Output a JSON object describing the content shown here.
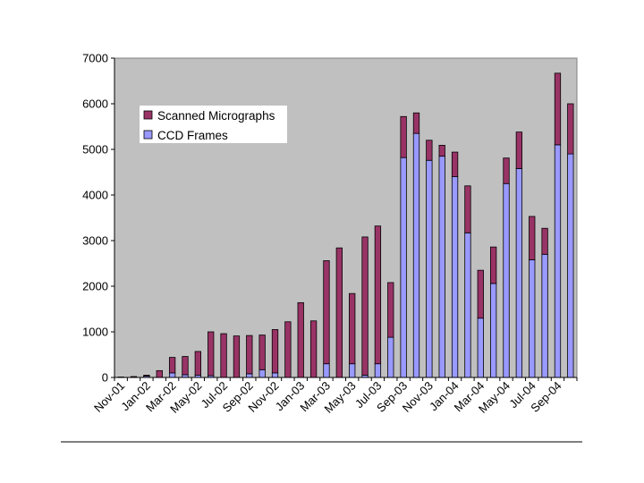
{
  "chart_data": {
    "type": "bar",
    "stacked": true,
    "title": "",
    "xlabel": "",
    "ylabel": "",
    "ylim": [
      0,
      7000
    ],
    "yticks": [
      0,
      1000,
      2000,
      3000,
      4000,
      5000,
      6000,
      7000
    ],
    "grid": false,
    "legend_position": "top-left",
    "colors": {
      "plot_background": "#c0c0c0",
      "ccd": "#9999ff",
      "scanned": "#993366",
      "outline": "#000000"
    },
    "categories": [
      "Nov-01",
      "Dec-01",
      "Jan-02",
      "Feb-02",
      "Mar-02",
      "Apr-02",
      "May-02",
      "Jun-02",
      "Jul-02",
      "Aug-02",
      "Sep-02",
      "Oct-02",
      "Nov-02",
      "Dec-02",
      "Jan-03",
      "Feb-03",
      "Mar-03",
      "Apr-03",
      "May-03",
      "Jun-03",
      "Jul-03",
      "Aug-03",
      "Sep-03",
      "Oct-03",
      "Nov-03",
      "Dec-03",
      "Jan-04",
      "Feb-04",
      "Mar-04",
      "Apr-04",
      "May-04",
      "Jun-04",
      "Jul-04",
      "Aug-04",
      "Sep-04",
      "Oct-04"
    ],
    "shown_tick_labels": [
      "Nov-01",
      "Jan-02",
      "Mar-02",
      "May-02",
      "Jul-02",
      "Sep-02",
      "Nov-02",
      "Jan-03",
      "Mar-03",
      "May-03",
      "Jul-03",
      "Sep-03",
      "Nov-03",
      "Jan-04",
      "Mar-04",
      "May-04",
      "Jul-04",
      "Sep-04"
    ],
    "series": [
      {
        "name": "CCD Frames",
        "values": [
          0,
          0,
          30,
          0,
          100,
          60,
          50,
          40,
          0,
          0,
          80,
          170,
          100,
          0,
          0,
          0,
          300,
          0,
          300,
          50,
          300,
          880,
          4820,
          5350,
          4760,
          4850,
          4400,
          3170,
          1300,
          2060,
          4250,
          4580,
          2580,
          2700,
          5100,
          4900
        ]
      },
      {
        "name": "Scanned Micrographs",
        "values": [
          10,
          20,
          20,
          150,
          340,
          400,
          520,
          960,
          960,
          910,
          840,
          760,
          950,
          1220,
          1640,
          1240,
          2260,
          2840,
          1540,
          3030,
          3020,
          1200,
          900,
          450,
          440,
          240,
          540,
          1030,
          1050,
          800,
          560,
          800,
          950,
          570,
          1570,
          1100
        ]
      }
    ],
    "legend": {
      "entries": [
        "Scanned Micrographs",
        "CCD Frames"
      ]
    }
  }
}
